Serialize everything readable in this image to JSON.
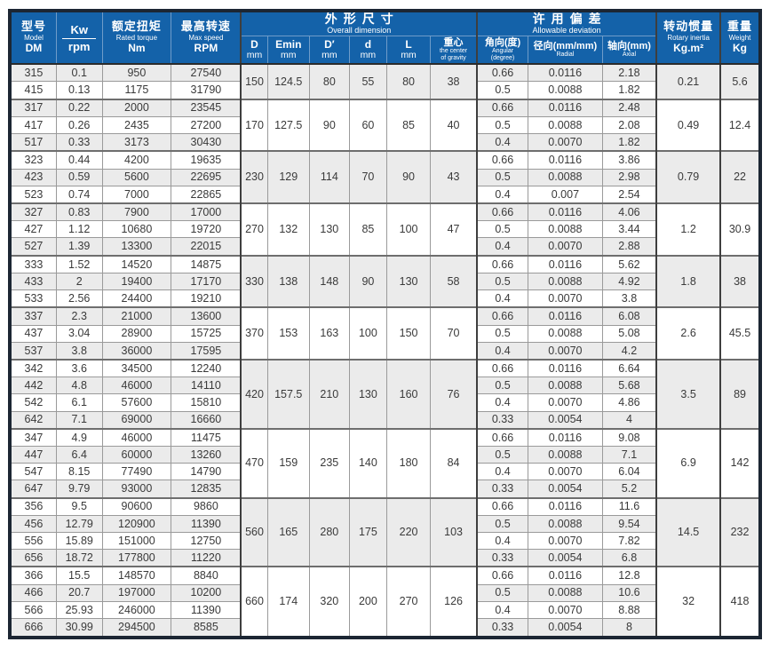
{
  "table": {
    "header": {
      "model": {
        "zh": "型号",
        "en": "Model",
        "unit": "DM"
      },
      "power": {
        "top": "Kw",
        "bottom": "rpm"
      },
      "torque": {
        "zh": "额定扭矩",
        "en": "Rated torque",
        "unit": "Nm"
      },
      "speed": {
        "zh": "最高转速",
        "en": "Max speed",
        "unit": "RPM"
      },
      "dimension_group": {
        "zh": "外形尺寸",
        "en": "Overall dimension"
      },
      "dim_cols": [
        {
          "main": "D",
          "sub": "mm"
        },
        {
          "main": "Emin",
          "sub": "mm"
        },
        {
          "main": "D′",
          "sub": "mm"
        },
        {
          "main": "d",
          "sub": "mm"
        },
        {
          "main": "L",
          "sub": "mm"
        },
        {
          "main": "重心",
          "sub": "the center",
          "sub2": "of gravity"
        }
      ],
      "deviation_group": {
        "zh": "许用偏差",
        "en": "Allowable deviation"
      },
      "dev_cols": [
        {
          "main": "角向(度)",
          "sub": "Angular",
          "sub2": "(degree)"
        },
        {
          "main": "径向(mm/mm)",
          "sub": "Radial"
        },
        {
          "main": "轴向(mm)",
          "sub": "Axial"
        }
      ],
      "inertia": {
        "zh": "转动惯量",
        "en": "Rotary inertia",
        "unit": "Kg.m²"
      },
      "weight": {
        "zh": "重量",
        "en": "Weight",
        "unit": "Kg"
      }
    },
    "groups": [
      {
        "dims": {
          "D": "150",
          "Emin": "124.5",
          "Dp": "80",
          "d": "55",
          "L": "80",
          "cg": "38"
        },
        "inertia": "0.21",
        "weight": "5.6",
        "rows": [
          {
            "model": "315",
            "kw": "0.1",
            "torque": "950",
            "speed": "27540",
            "angular": "0.66",
            "radial": "0.0116",
            "axial": "2.18"
          },
          {
            "model": "415",
            "kw": "0.13",
            "torque": "1175",
            "speed": "31790",
            "angular": "0.5",
            "radial": "0.0088",
            "axial": "1.82"
          }
        ]
      },
      {
        "dims": {
          "D": "170",
          "Emin": "127.5",
          "Dp": "90",
          "d": "60",
          "L": "85",
          "cg": "40"
        },
        "inertia": "0.49",
        "weight": "12.4",
        "rows": [
          {
            "model": "317",
            "kw": "0.22",
            "torque": "2000",
            "speed": "23545",
            "angular": "0.66",
            "radial": "0.0116",
            "axial": "2.48"
          },
          {
            "model": "417",
            "kw": "0.26",
            "torque": "2435",
            "speed": "27200",
            "angular": "0.5",
            "radial": "0.0088",
            "axial": "2.08"
          },
          {
            "model": "517",
            "kw": "0.33",
            "torque": "3173",
            "speed": "30430",
            "angular": "0.4",
            "radial": "0.0070",
            "axial": "1.82"
          }
        ]
      },
      {
        "dims": {
          "D": "230",
          "Emin": "129",
          "Dp": "114",
          "d": "70",
          "L": "90",
          "cg": "43"
        },
        "inertia": "0.79",
        "weight": "22",
        "rows": [
          {
            "model": "323",
            "kw": "0.44",
            "torque": "4200",
            "speed": "19635",
            "angular": "0.66",
            "radial": "0.0116",
            "axial": "3.86"
          },
          {
            "model": "423",
            "kw": "0.59",
            "torque": "5600",
            "speed": "22695",
            "angular": "0.5",
            "radial": "0.0088",
            "axial": "2.98"
          },
          {
            "model": "523",
            "kw": "0.74",
            "torque": "7000",
            "speed": "22865",
            "angular": "0.4",
            "radial": "0.007",
            "axial": "2.54"
          }
        ]
      },
      {
        "dims": {
          "D": "270",
          "Emin": "132",
          "Dp": "130",
          "d": "85",
          "L": "100",
          "cg": "47"
        },
        "inertia": "1.2",
        "weight": "30.9",
        "rows": [
          {
            "model": "327",
            "kw": "0.83",
            "torque": "7900",
            "speed": "17000",
            "angular": "0.66",
            "radial": "0.0116",
            "axial": "4.06"
          },
          {
            "model": "427",
            "kw": "1.12",
            "torque": "10680",
            "speed": "19720",
            "angular": "0.5",
            "radial": "0.0088",
            "axial": "3.44"
          },
          {
            "model": "527",
            "kw": "1.39",
            "torque": "13300",
            "speed": "22015",
            "angular": "0.4",
            "radial": "0.0070",
            "axial": "2.88"
          }
        ]
      },
      {
        "dims": {
          "D": "330",
          "Emin": "138",
          "Dp": "148",
          "d": "90",
          "L": "130",
          "cg": "58"
        },
        "inertia": "1.8",
        "weight": "38",
        "rows": [
          {
            "model": "333",
            "kw": "1.52",
            "torque": "14520",
            "speed": "14875",
            "angular": "0.66",
            "radial": "0.0116",
            "axial": "5.62"
          },
          {
            "model": "433",
            "kw": "2",
            "torque": "19400",
            "speed": "17170",
            "angular": "0.5",
            "radial": "0.0088",
            "axial": "4.92"
          },
          {
            "model": "533",
            "kw": "2.56",
            "torque": "24400",
            "speed": "19210",
            "angular": "0.4",
            "radial": "0.0070",
            "axial": "3.8"
          }
        ]
      },
      {
        "dims": {
          "D": "370",
          "Emin": "153",
          "Dp": "163",
          "d": "100",
          "L": "150",
          "cg": "70"
        },
        "inertia": "2.6",
        "weight": "45.5",
        "rows": [
          {
            "model": "337",
            "kw": "2.3",
            "torque": "21000",
            "speed": "13600",
            "angular": "0.66",
            "radial": "0.0116",
            "axial": "6.08"
          },
          {
            "model": "437",
            "kw": "3.04",
            "torque": "28900",
            "speed": "15725",
            "angular": "0.5",
            "radial": "0.0088",
            "axial": "5.08"
          },
          {
            "model": "537",
            "kw": "3.8",
            "torque": "36000",
            "speed": "17595",
            "angular": "0.4",
            "radial": "0.0070",
            "axial": "4.2"
          }
        ]
      },
      {
        "dims": {
          "D": "420",
          "Emin": "157.5",
          "Dp": "210",
          "d": "130",
          "L": "160",
          "cg": "76"
        },
        "inertia": "3.5",
        "weight": "89",
        "rows": [
          {
            "model": "342",
            "kw": "3.6",
            "torque": "34500",
            "speed": "12240",
            "angular": "0.66",
            "radial": "0.0116",
            "axial": "6.64"
          },
          {
            "model": "442",
            "kw": "4.8",
            "torque": "46000",
            "speed": "14110",
            "angular": "0.5",
            "radial": "0.0088",
            "axial": "5.68"
          },
          {
            "model": "542",
            "kw": "6.1",
            "torque": "57600",
            "speed": "15810",
            "angular": "0.4",
            "radial": "0.0070",
            "axial": "4.86"
          },
          {
            "model": "642",
            "kw": "7.1",
            "torque": "69000",
            "speed": "16660",
            "angular": "0.33",
            "radial": "0.0054",
            "axial": "4"
          }
        ]
      },
      {
        "dims": {
          "D": "470",
          "Emin": "159",
          "Dp": "235",
          "d": "140",
          "L": "180",
          "cg": "84"
        },
        "inertia": "6.9",
        "weight": "142",
        "rows": [
          {
            "model": "347",
            "kw": "4.9",
            "torque": "46000",
            "speed": "11475",
            "angular": "0.66",
            "radial": "0.0116",
            "axial": "9.08"
          },
          {
            "model": "447",
            "kw": "6.4",
            "torque": "60000",
            "speed": "13260",
            "angular": "0.5",
            "radial": "0.0088",
            "axial": "7.1"
          },
          {
            "model": "547",
            "kw": "8.15",
            "torque": "77490",
            "speed": "14790",
            "angular": "0.4",
            "radial": "0.0070",
            "axial": "6.04"
          },
          {
            "model": "647",
            "kw": "9.79",
            "torque": "93000",
            "speed": "12835",
            "angular": "0.33",
            "radial": "0.0054",
            "axial": "5.2"
          }
        ]
      },
      {
        "dims": {
          "D": "560",
          "Emin": "165",
          "Dp": "280",
          "d": "175",
          "L": "220",
          "cg": "103"
        },
        "inertia": "14.5",
        "weight": "232",
        "rows": [
          {
            "model": "356",
            "kw": "9.5",
            "torque": "90600",
            "speed": "9860",
            "angular": "0.66",
            "radial": "0.0116",
            "axial": "11.6"
          },
          {
            "model": "456",
            "kw": "12.79",
            "torque": "120900",
            "speed": "11390",
            "angular": "0.5",
            "radial": "0.0088",
            "axial": "9.54"
          },
          {
            "model": "556",
            "kw": "15.89",
            "torque": "151000",
            "speed": "12750",
            "angular": "0.4",
            "radial": "0.0070",
            "axial": "7.82"
          },
          {
            "model": "656",
            "kw": "18.72",
            "torque": "177800",
            "speed": "11220",
            "angular": "0.33",
            "radial": "0.0054",
            "axial": "6.8"
          }
        ]
      },
      {
        "dims": {
          "D": "660",
          "Emin": "174",
          "Dp": "320",
          "d": "200",
          "L": "270",
          "cg": "126"
        },
        "inertia": "32",
        "weight": "418",
        "rows": [
          {
            "model": "366",
            "kw": "15.5",
            "torque": "148570",
            "speed": "8840",
            "angular": "0.66",
            "radial": "0.0116",
            "axial": "12.8"
          },
          {
            "model": "466",
            "kw": "20.7",
            "torque": "197000",
            "speed": "10200",
            "angular": "0.5",
            "radial": "0.0088",
            "axial": "10.6"
          },
          {
            "model": "566",
            "kw": "25.93",
            "torque": "246000",
            "speed": "11390",
            "angular": "0.4",
            "radial": "0.0070",
            "axial": "8.88"
          },
          {
            "model": "666",
            "kw": "30.99",
            "torque": "294500",
            "speed": "8585",
            "angular": "0.33",
            "radial": "0.0054",
            "axial": "8"
          }
        ]
      }
    ]
  },
  "colors": {
    "header_blue": "#1462a9",
    "outer_border": "#1c2633",
    "stripe_gray": "#ebebeb"
  }
}
